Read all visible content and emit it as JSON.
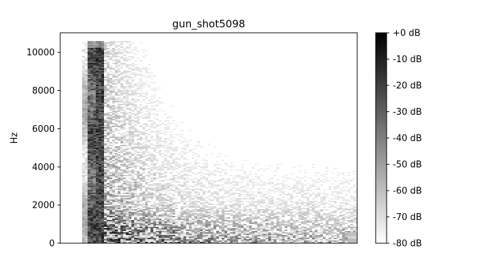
{
  "chart_data": {
    "type": "heatmap",
    "title": "gun_shot5098",
    "ylabel": "Hz",
    "xlabel": "",
    "y_ticks": [
      0,
      2000,
      4000,
      6000,
      8000,
      10000
    ],
    "y_tick_labels": [
      "0",
      "2000",
      "4000",
      "6000",
      "8000",
      "10000"
    ],
    "ylim": [
      0,
      11025
    ],
    "colormap": "gray_r",
    "colorbar": {
      "range": [
        -80,
        0
      ],
      "ticks": [
        0,
        -10,
        -20,
        -30,
        -40,
        -50,
        -60,
        -70,
        -80
      ],
      "tick_labels": [
        "+0 dB",
        "-10 dB",
        "-20 dB",
        "-30 dB",
        "-40 dB",
        "-50 dB",
        "-60 dB",
        "-70 dB",
        "-80 dB"
      ]
    }
  }
}
